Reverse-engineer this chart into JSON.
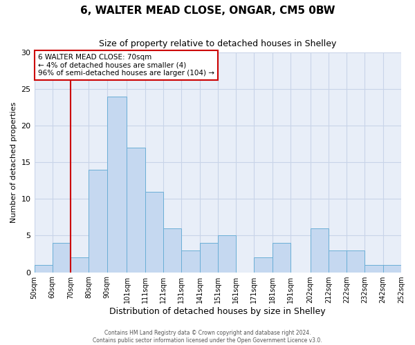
{
  "title": "6, WALTER MEAD CLOSE, ONGAR, CM5 0BW",
  "subtitle": "Size of property relative to detached houses in Shelley",
  "xlabel": "Distribution of detached houses by size in Shelley",
  "ylabel": "Number of detached properties",
  "bin_edges": [
    50,
    60,
    70,
    80,
    90,
    101,
    111,
    121,
    131,
    141,
    151,
    161,
    171,
    181,
    191,
    202,
    212,
    222,
    232,
    242,
    252
  ],
  "counts": [
    1,
    4,
    2,
    14,
    24,
    17,
    11,
    6,
    3,
    4,
    5,
    0,
    2,
    4,
    0,
    6,
    3,
    3,
    1,
    1
  ],
  "tick_labels": [
    "50sqm",
    "60sqm",
    "70sqm",
    "80sqm",
    "90sqm",
    "101sqm",
    "111sqm",
    "121sqm",
    "131sqm",
    "141sqm",
    "151sqm",
    "161sqm",
    "171sqm",
    "181sqm",
    "191sqm",
    "202sqm",
    "212sqm",
    "222sqm",
    "232sqm",
    "242sqm",
    "252sqm"
  ],
  "bar_color": "#c5d8f0",
  "bar_edge_color": "#6aaed6",
  "vline_x": 70,
  "vline_color": "#cc0000",
  "annotation_title": "6 WALTER MEAD CLOSE: 70sqm",
  "annotation_line1": "← 4% of detached houses are smaller (4)",
  "annotation_line2": "96% of semi-detached houses are larger (104) →",
  "annotation_box_color": "#cc0000",
  "ylim": [
    0,
    30
  ],
  "yticks": [
    0,
    5,
    10,
    15,
    20,
    25,
    30
  ],
  "grid_color": "#c8d4e8",
  "background_color": "#e8eef8",
  "footer_line1": "Contains HM Land Registry data © Crown copyright and database right 2024.",
  "footer_line2": "Contains public sector information licensed under the Open Government Licence v3.0."
}
